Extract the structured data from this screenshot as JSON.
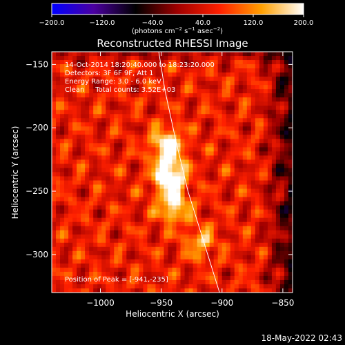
{
  "chart_data": {
    "type": "heatmap",
    "title": "Reconstructed RHESSI Image",
    "xlabel": "Heliocentric X (arcsec)",
    "ylabel": "Heliocentric Y (arcsec)",
    "xlim": [
      -1040,
      -842
    ],
    "ylim": [
      -330,
      -140
    ],
    "xticks": [
      -1000,
      -950,
      -900,
      -850
    ],
    "yticks": [
      -300,
      -250,
      -200,
      -150
    ],
    "xtick_labels": [
      "−1000",
      "−950",
      "−900",
      "−850"
    ],
    "ytick_labels": [
      "−300",
      "−250",
      "−200",
      "−150"
    ],
    "colorbar": {
      "min": -200.0,
      "max": 200.0,
      "ticks": [
        -200.0,
        -120.0,
        -40.0,
        40.0,
        120.0,
        200.0
      ],
      "tick_labels": [
        "−200.0",
        "−120.0",
        "−40.0",
        "40.0",
        "120.0",
        "200.0"
      ],
      "unit_label_base": "(photons cm",
      "unit_sup1": "−2",
      "unit_mid": " s",
      "unit_sup2": "−1",
      "unit_mid2": " asec",
      "unit_sup3": "−2",
      "unit_end": ")"
    },
    "sources": [
      {
        "x": -943,
        "y": -238,
        "value": 200
      },
      {
        "x": -945,
        "y": -214,
        "value": 170
      },
      {
        "x": -940,
        "y": -262,
        "value": 140
      },
      {
        "x": -918,
        "y": -290,
        "value": 90
      }
    ],
    "limb_line": [
      [
        -952,
        -140
      ],
      [
        -947,
        -170
      ],
      [
        -938,
        -210
      ],
      [
        -928,
        -250
      ],
      [
        -915,
        -290
      ],
      [
        -902,
        -330
      ]
    ],
    "annotations": [
      "14-Oct-2014 18:20:40.000 to 18:23:20.000",
      "Detectors: 3F 6F 9F, Att 1",
      "Energy Range: 3.0 - 6.0 keV",
      "Clean     Total counts: 3.52E+03"
    ],
    "peak_label": "Position of Peak = [-941,-235]",
    "colormap": [
      "#0000ff",
      "#4b00a0",
      "#000000",
      "#a00000",
      "#ff2000",
      "#ffa000",
      "#ffffff"
    ]
  },
  "footer": {
    "timestamp": "18-May-2022 02:43"
  }
}
